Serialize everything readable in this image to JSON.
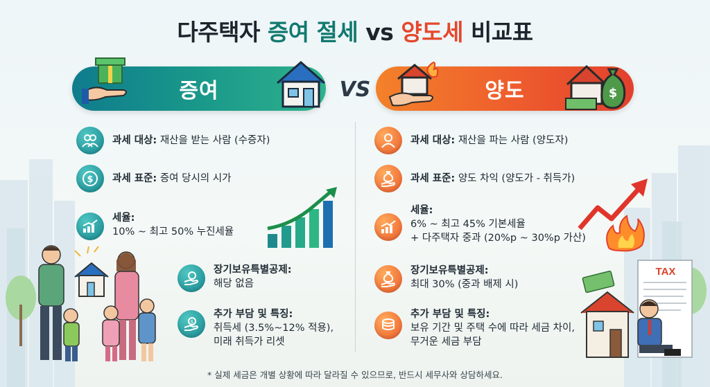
{
  "title": {
    "part1": "다주택자",
    "part2": "증여 절세",
    "part3": "vs",
    "part4": "양도세",
    "part5": "비교표"
  },
  "vs": "VS",
  "gift": {
    "banner": "증여",
    "items": [
      {
        "label": "과세 대상:",
        "text": "재산을 받는 사람 (수증자)",
        "icon": "people-icon"
      },
      {
        "label": "과세 표준:",
        "text": "증여 당시의 시가",
        "icon": "dollar-coin-icon"
      },
      {
        "label": "세율:",
        "text": "10% ~ 최고 50% 누진세율",
        "icon": "growth-chart-icon"
      },
      {
        "label": "장기보유특별공제:",
        "text": "해당 없음",
        "icon": "money-hand-icon"
      },
      {
        "label": "추가 부담 및 특징:",
        "text1": "취득세 (3.5%~12% 적용),",
        "text2": "미래 취득가 리셋",
        "icon": "coin-hand-icon"
      }
    ]
  },
  "transfer": {
    "banner": "양도",
    "items": [
      {
        "label": "과세 대상:",
        "text": "재산을 파는 사람 (양도자)",
        "icon": "person-icon"
      },
      {
        "label": "과세 표준:",
        "text": "양도 차익 (양도가 - 취득가)",
        "icon": "money-bag-hand-icon"
      },
      {
        "label": "세율:",
        "text1": "6% ~ 최고 45% 기본세율",
        "text2": "+ 다주택자 중과 (20%p ~ 30%p 가산)",
        "icon": "growth-chart-icon"
      },
      {
        "label": "장기보유특별공제:",
        "text": "최대 30% (중과 배제 시)",
        "icon": "money-bag-hand-icon"
      },
      {
        "label": "추가 부담 및 특징:",
        "text1": "보유 기간 및 주택 수에 따라 세금 차이,",
        "text2": "무거운 세금 부담",
        "icon": "coin-stack-icon"
      }
    ]
  },
  "tax_label": "TAX",
  "note": "* 실제 세금은 개별 상황에 따라 달라질 수 있으므로, 반드시 세무사와 상담하세요.",
  "colors": {
    "teal": "#17868e",
    "orange": "#ea5a2a",
    "title_green": "#12796f",
    "title_red": "#e4482c"
  }
}
